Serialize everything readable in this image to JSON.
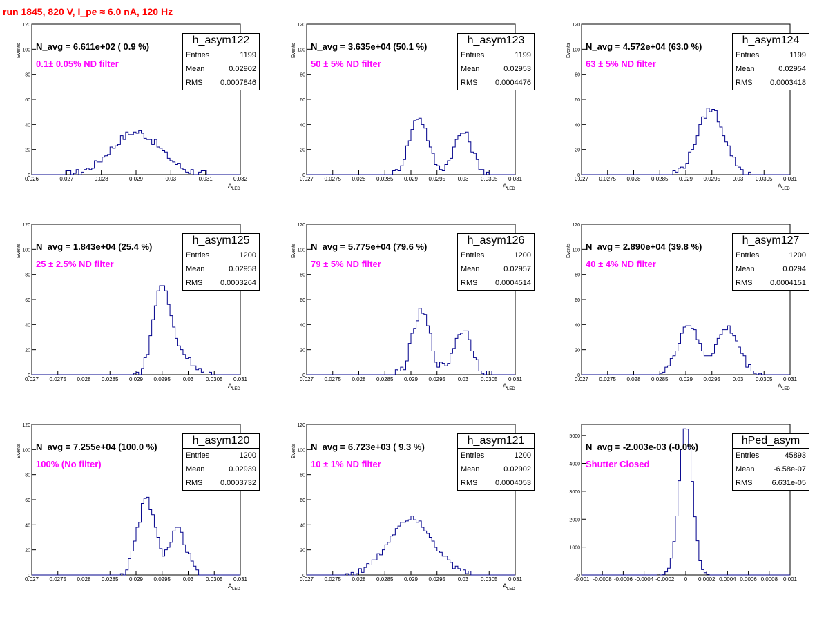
{
  "page_title": "run 1845,   820 V, I_pe ≈ 6.0 nA, 120 Hz",
  "colors": {
    "title": "#ff0000",
    "filter_text": "#ff00ff",
    "histogram": "#00008b"
  },
  "panels": [
    {
      "name": "h_asym122",
      "navg": "N_avg = 6.611e+02 ( 0.9 %)",
      "filter": "0.1± 0.05% ND filter",
      "stats": [
        [
          "Entries",
          "1199"
        ],
        [
          "Mean",
          "0.02902"
        ],
        [
          "RMS",
          "0.0007846"
        ]
      ],
      "ylabel": "Events",
      "xlabel": "A",
      "xlabel_sub": "LED"
    },
    {
      "name": "h_asym123",
      "navg": "N_avg = 3.635e+04 (50.1 %)",
      "filter": "50 ± 5% ND filter",
      "stats": [
        [
          "Entries",
          "1199"
        ],
        [
          "Mean",
          "0.02953"
        ],
        [
          "RMS",
          "0.0004476"
        ]
      ],
      "ylabel": "Events",
      "xlabel": "A",
      "xlabel_sub": "LED"
    },
    {
      "name": "h_asym124",
      "navg": "N_avg = 4.572e+04 (63.0 %)",
      "filter": "63 ± 5% ND filter",
      "stats": [
        [
          "Entries",
          "1199"
        ],
        [
          "Mean",
          "0.02954"
        ],
        [
          "RMS",
          "0.0003418"
        ]
      ],
      "ylabel": "Events",
      "xlabel": "A",
      "xlabel_sub": "LED"
    },
    {
      "name": "h_asym125",
      "navg": "N_avg = 1.843e+04 (25.4 %)",
      "filter": "25 ± 2.5% ND filter",
      "stats": [
        [
          "Entries",
          "1200"
        ],
        [
          "Mean",
          "0.02958"
        ],
        [
          "RMS",
          "0.0003264"
        ]
      ],
      "ylabel": "Events",
      "xlabel": "A",
      "xlabel_sub": "LED"
    },
    {
      "name": "h_asym126",
      "navg": "N_avg = 5.775e+04 (79.6 %)",
      "filter": "79 ± 5% ND filter",
      "stats": [
        [
          "Entries",
          "1200"
        ],
        [
          "Mean",
          "0.02957"
        ],
        [
          "RMS",
          "0.0004514"
        ]
      ],
      "ylabel": "Events",
      "xlabel": "A",
      "xlabel_sub": "LED"
    },
    {
      "name": "h_asym127",
      "navg": "N_avg = 2.890e+04 (39.8 %)",
      "filter": "40 ± 4% ND filter",
      "stats": [
        [
          "Entries",
          "1200"
        ],
        [
          "Mean",
          "0.0294"
        ],
        [
          "RMS",
          "0.0004151"
        ]
      ],
      "ylabel": "Events",
      "xlabel": "A",
      "xlabel_sub": "LED"
    },
    {
      "name": "h_asym120",
      "navg": "N_avg = 7.255e+04 (100.0 %)",
      "filter": "100% (No filter)",
      "stats": [
        [
          "Entries",
          "1200"
        ],
        [
          "Mean",
          "0.02939"
        ],
        [
          "RMS",
          "0.0003732"
        ]
      ],
      "ylabel": "Events",
      "xlabel": "A",
      "xlabel_sub": "LED"
    },
    {
      "name": "h_asym121",
      "navg": "N_avg = 6.723e+03 ( 9.3 %)",
      "filter": "10 ± 1% ND filter",
      "stats": [
        [
          "Entries",
          "1200"
        ],
        [
          "Mean",
          "0.02902"
        ],
        [
          "RMS",
          "0.0004053"
        ]
      ],
      "ylabel": "Events",
      "xlabel": "A",
      "xlabel_sub": "LED"
    },
    {
      "name": "hPed_asym",
      "navg": "N_avg = -2.003e-03 (-0.0%)",
      "filter": "Shutter Closed",
      "stats": [
        [
          "Entries",
          "45893"
        ],
        [
          "Mean",
          "-6.58e-07"
        ],
        [
          "RMS",
          "6.631e-05"
        ]
      ],
      "ylabel": "",
      "xlabel": "",
      "xlabel_sub": ""
    }
  ],
  "chart_data": [
    {
      "type": "histogram",
      "title": "h_asym122",
      "ylabel": "Events",
      "xlabel": "A_LED",
      "xlim": [
        0.026,
        0.032
      ],
      "ylim": [
        0,
        120
      ],
      "xticks": [
        "0.026",
        "0.027",
        "0.028",
        "0.029",
        "0.03",
        "0.031",
        "0.032"
      ],
      "yticks": [
        "0",
        "20",
        "40",
        "60",
        "80",
        "100",
        "120"
      ],
      "peaks": [
        [
          0.029,
          34,
          0.0007
        ]
      ],
      "jitter": 6
    },
    {
      "type": "histogram",
      "title": "h_asym123",
      "ylabel": "Events",
      "xlabel": "A_LED",
      "xlim": [
        0.027,
        0.031
      ],
      "ylim": [
        0,
        120
      ],
      "xticks": [
        "0.027",
        "0.0275",
        "0.028",
        "0.0285",
        "0.029",
        "0.0295",
        "0.03",
        "0.0305",
        "0.031"
      ],
      "yticks": [
        "0",
        "20",
        "40",
        "60",
        "80",
        "100",
        "120"
      ],
      "peaks": [
        [
          0.02915,
          46,
          0.00018
        ],
        [
          0.03,
          34,
          0.00018
        ]
      ],
      "jitter": 6
    },
    {
      "type": "histogram",
      "title": "h_asym124",
      "ylabel": "Events",
      "xlabel": "A_LED",
      "xlim": [
        0.027,
        0.031
      ],
      "ylim": [
        0,
        120
      ],
      "xticks": [
        "0.027",
        "0.0275",
        "0.028",
        "0.0285",
        "0.029",
        "0.0295",
        "0.03",
        "0.0305",
        "0.031"
      ],
      "yticks": [
        "0",
        "20",
        "40",
        "60",
        "80",
        "100",
        "120"
      ],
      "peaks": [
        [
          0.02948,
          52,
          0.00026
        ]
      ],
      "jitter": 6
    },
    {
      "type": "histogram",
      "title": "h_asym125",
      "ylabel": "Events",
      "xlabel": "A_LED",
      "xlim": [
        0.027,
        0.031
      ],
      "ylim": [
        0,
        120
      ],
      "xticks": [
        "0.027",
        "0.0275",
        "0.028",
        "0.0285",
        "0.029",
        "0.0295",
        "0.03",
        "0.0305",
        "0.031"
      ],
      "yticks": [
        "0",
        "20",
        "40",
        "60",
        "80",
        "100",
        "120"
      ],
      "peaks": [
        [
          0.02948,
          64,
          0.00016
        ],
        [
          0.0298,
          18,
          0.00025
        ]
      ],
      "jitter": 6
    },
    {
      "type": "histogram",
      "title": "h_asym126",
      "ylabel": "Events",
      "xlabel": "A_LED",
      "xlim": [
        0.027,
        0.031
      ],
      "ylim": [
        0,
        120
      ],
      "xticks": [
        "0.027",
        "0.0275",
        "0.028",
        "0.0285",
        "0.029",
        "0.0295",
        "0.03",
        "0.0305",
        "0.031"
      ],
      "yticks": [
        "0",
        "20",
        "40",
        "60",
        "80",
        "100",
        "120"
      ],
      "peaks": [
        [
          0.0292,
          50,
          0.00017
        ],
        [
          0.03,
          36,
          0.00018
        ]
      ],
      "jitter": 8
    },
    {
      "type": "histogram",
      "title": "h_asym127",
      "ylabel": "Events",
      "xlabel": "A_LED",
      "xlim": [
        0.027,
        0.031
      ],
      "ylim": [
        0,
        120
      ],
      "xticks": [
        "0.027",
        "0.0275",
        "0.028",
        "0.0285",
        "0.029",
        "0.0295",
        "0.03",
        "0.0305",
        "0.031"
      ],
      "yticks": [
        "0",
        "20",
        "40",
        "60",
        "80",
        "100",
        "120"
      ],
      "peaks": [
        [
          0.02905,
          40,
          0.0002
        ],
        [
          0.0298,
          37,
          0.00022
        ]
      ],
      "jitter": 6
    },
    {
      "type": "histogram",
      "title": "h_asym120",
      "ylabel": "Events",
      "xlabel": "A_LED",
      "xlim": [
        0.027,
        0.031
      ],
      "ylim": [
        0,
        120
      ],
      "xticks": [
        "0.027",
        "0.0275",
        "0.028",
        "0.0285",
        "0.029",
        "0.0295",
        "0.03",
        "0.0305",
        "0.031"
      ],
      "yticks": [
        "0",
        "20",
        "40",
        "60",
        "80",
        "100",
        "120"
      ],
      "peaks": [
        [
          0.0292,
          60,
          0.00017
        ],
        [
          0.0298,
          36,
          0.00016
        ]
      ],
      "jitter": 7
    },
    {
      "type": "histogram",
      "title": "h_asym121",
      "ylabel": "Events",
      "xlabel": "A_LED",
      "xlim": [
        0.027,
        0.031
      ],
      "ylim": [
        0,
        120
      ],
      "xticks": [
        "0.027",
        "0.0275",
        "0.028",
        "0.0285",
        "0.029",
        "0.0295",
        "0.03",
        "0.0305",
        "0.031"
      ],
      "yticks": [
        "0",
        "20",
        "40",
        "60",
        "80",
        "100",
        "120"
      ],
      "peaks": [
        [
          0.029,
          46,
          0.00042
        ]
      ],
      "jitter": 5
    },
    {
      "type": "histogram",
      "title": "hPed_asym",
      "xlim": [
        -0.001,
        0.001
      ],
      "ylim": [
        0,
        5400
      ],
      "xticks": [
        "-0.001",
        "-0.0008",
        "-0.0006",
        "-0.0004",
        "-0.0002",
        "0",
        "0.0002",
        "0.0004",
        "0.0006",
        "0.0008",
        "0.001"
      ],
      "yticks": [
        "0",
        "1000",
        "2000",
        "3000",
        "4000",
        "5000"
      ],
      "ytick_values": [
        0,
        1000,
        2000,
        3000,
        4000,
        5000
      ],
      "peaks": [
        [
          0,
          5300,
          6.5e-05
        ]
      ],
      "jitter": 120
    }
  ]
}
